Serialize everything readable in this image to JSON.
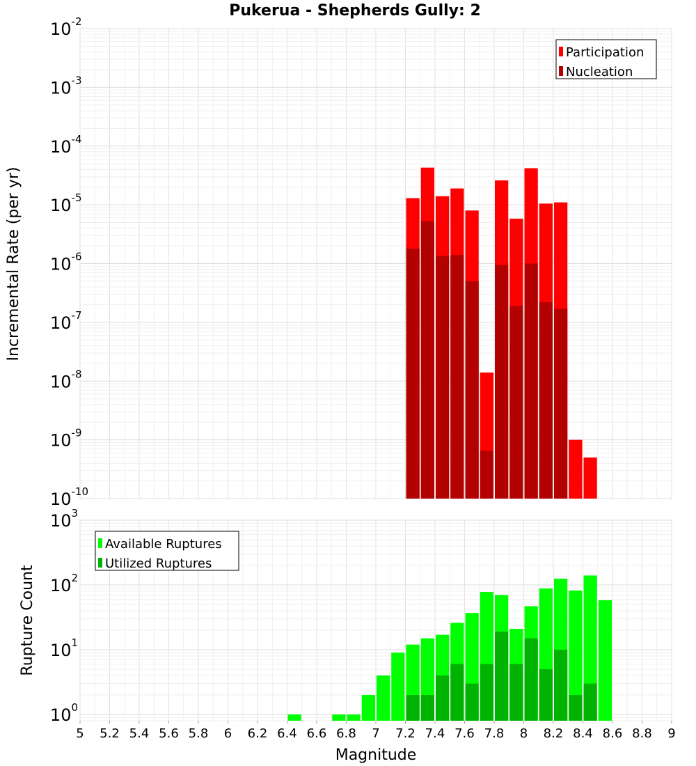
{
  "chart_data": [
    {
      "type": "bar",
      "title": "Pukerua - Shepherds Gully: 2",
      "xlabel": "",
      "ylabel": "Incremental Rate (per yr)",
      "yscale": "log",
      "xlim": [
        5,
        9
      ],
      "ylim": [
        1e-10,
        0.01
      ],
      "y_ticks": [
        {
          "base": "10",
          "exp": "-10",
          "value": 1e-10
        },
        {
          "base": "10",
          "exp": "-9",
          "value": 1e-09
        },
        {
          "base": "10",
          "exp": "-8",
          "value": 1e-08
        },
        {
          "base": "10",
          "exp": "-7",
          "value": 1e-07
        },
        {
          "base": "10",
          "exp": "-6",
          "value": 1e-06
        },
        {
          "base": "10",
          "exp": "-5",
          "value": 1e-05
        },
        {
          "base": "10",
          "exp": "-4",
          "value": 0.0001
        },
        {
          "base": "10",
          "exp": "-3",
          "value": 0.001
        },
        {
          "base": "10",
          "exp": "-2",
          "value": 0.01
        }
      ],
      "grid": true,
      "legend_position": "top-right",
      "bin_width": 0.1,
      "series": [
        {
          "name": "Participation",
          "color": "#ff0000",
          "points": [
            {
              "x": 7.25,
              "y": 1.3e-05
            },
            {
              "x": 7.35,
              "y": 4.3e-05
            },
            {
              "x": 7.45,
              "y": 1.4e-05
            },
            {
              "x": 7.55,
              "y": 1.9e-05
            },
            {
              "x": 7.65,
              "y": 8e-06
            },
            {
              "x": 7.75,
              "y": 1.4e-08
            },
            {
              "x": 7.85,
              "y": 2.6e-05
            },
            {
              "x": 7.95,
              "y": 5.8e-06
            },
            {
              "x": 8.05,
              "y": 4.2e-05
            },
            {
              "x": 8.15,
              "y": 1.05e-05
            },
            {
              "x": 8.25,
              "y": 1.1e-05
            },
            {
              "x": 8.35,
              "y": 1e-09
            },
            {
              "x": 8.45,
              "y": 5e-10
            }
          ]
        },
        {
          "name": "Nucleation",
          "color": "#b30000",
          "points": [
            {
              "x": 7.25,
              "y": 1.8e-06
            },
            {
              "x": 7.35,
              "y": 5.3e-06
            },
            {
              "x": 7.45,
              "y": 1.35e-06
            },
            {
              "x": 7.55,
              "y": 1.4e-06
            },
            {
              "x": 7.65,
              "y": 5e-07
            },
            {
              "x": 7.75,
              "y": 6.5e-10
            },
            {
              "x": 7.85,
              "y": 9.5e-07
            },
            {
              "x": 7.95,
              "y": 1.9e-07
            },
            {
              "x": 8.05,
              "y": 1e-06
            },
            {
              "x": 8.15,
              "y": 2.2e-07
            },
            {
              "x": 8.25,
              "y": 1.7e-07
            }
          ]
        }
      ]
    },
    {
      "type": "bar",
      "xlabel": "Magnitude",
      "ylabel": "Rupture Count",
      "yscale": "log",
      "xlim": [
        5,
        9
      ],
      "ylim": [
        0.8,
        1000
      ],
      "x_ticks": [
        "5",
        "5.2",
        "5.4",
        "5.6",
        "5.8",
        "6",
        "6.2",
        "6.4",
        "6.6",
        "6.8",
        "7",
        "7.2",
        "7.4",
        "7.6",
        "7.8",
        "8",
        "8.2",
        "8.4",
        "8.6",
        "8.8",
        "9"
      ],
      "y_ticks": [
        {
          "base": "10",
          "exp": "0",
          "value": 1
        },
        {
          "base": "10",
          "exp": "1",
          "value": 10
        },
        {
          "base": "10",
          "exp": "2",
          "value": 100
        },
        {
          "base": "10",
          "exp": "3",
          "value": 1000
        }
      ],
      "grid": true,
      "legend_position": "top-left",
      "bin_width": 0.1,
      "series": [
        {
          "name": "Available Ruptures",
          "color": "#00ff00",
          "points": [
            {
              "x": 6.45,
              "y": 1
            },
            {
              "x": 6.75,
              "y": 1
            },
            {
              "x": 6.85,
              "y": 1
            },
            {
              "x": 6.95,
              "y": 2
            },
            {
              "x": 7.05,
              "y": 4
            },
            {
              "x": 7.15,
              "y": 9
            },
            {
              "x": 7.25,
              "y": 12
            },
            {
              "x": 7.35,
              "y": 15
            },
            {
              "x": 7.45,
              "y": 17
            },
            {
              "x": 7.55,
              "y": 26
            },
            {
              "x": 7.65,
              "y": 37
            },
            {
              "x": 7.75,
              "y": 78
            },
            {
              "x": 7.85,
              "y": 70
            },
            {
              "x": 7.95,
              "y": 21
            },
            {
              "x": 8.05,
              "y": 47
            },
            {
              "x": 8.15,
              "y": 88
            },
            {
              "x": 8.25,
              "y": 125
            },
            {
              "x": 8.35,
              "y": 82
            },
            {
              "x": 8.45,
              "y": 140
            },
            {
              "x": 8.55,
              "y": 58
            }
          ]
        },
        {
          "name": "Utilized Ruptures",
          "color": "#00b300",
          "points": [
            {
              "x": 7.25,
              "y": 2
            },
            {
              "x": 7.35,
              "y": 2
            },
            {
              "x": 7.45,
              "y": 4
            },
            {
              "x": 7.55,
              "y": 6
            },
            {
              "x": 7.65,
              "y": 3
            },
            {
              "x": 7.75,
              "y": 6
            },
            {
              "x": 7.85,
              "y": 19
            },
            {
              "x": 7.95,
              "y": 6
            },
            {
              "x": 8.05,
              "y": 15
            },
            {
              "x": 8.15,
              "y": 5
            },
            {
              "x": 8.25,
              "y": 10
            },
            {
              "x": 8.35,
              "y": 2
            },
            {
              "x": 8.45,
              "y": 3
            }
          ]
        }
      ]
    }
  ]
}
